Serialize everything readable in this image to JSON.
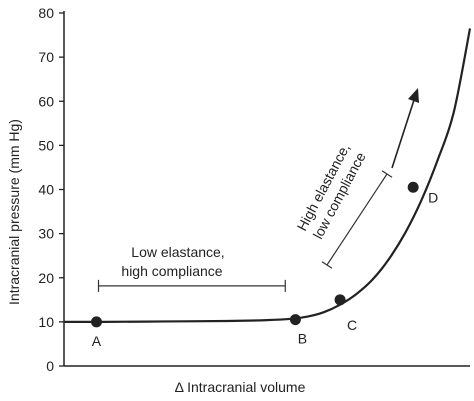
{
  "chart_data": {
    "type": "line",
    "xlabel": "Δ Intracranial volume",
    "ylabel": "Intracranial pressure (mm Hg)",
    "ylim": [
      0,
      80
    ],
    "yticks": [
      0,
      10,
      20,
      30,
      40,
      50,
      60,
      70,
      80
    ],
    "xlim": [
      0,
      100
    ],
    "grid": false,
    "curve": {
      "x": [
        0,
        10,
        25,
        40,
        50,
        56,
        60,
        64,
        68,
        72,
        76,
        80,
        84,
        88,
        92,
        96,
        100
      ],
      "y": [
        10,
        10,
        10.1,
        10.2,
        10.4,
        10.7,
        11.2,
        12.2,
        13.9,
        16.3,
        19.6,
        24.2,
        30.1,
        37.5,
        46.6,
        57.5,
        76.5
      ]
    },
    "points": [
      {
        "label": "A",
        "x": 8,
        "y": 10
      },
      {
        "label": "B",
        "x": 57,
        "y": 10.5
      },
      {
        "label": "C",
        "x": 68,
        "y": 15
      },
      {
        "label": "D",
        "x": 86,
        "y": 40.5
      }
    ],
    "annotations": [
      {
        "text_lines": [
          "Low elastance,",
          "high compliance"
        ]
      },
      {
        "text_lines": [
          "High elastance,",
          "low compliance"
        ]
      }
    ]
  }
}
